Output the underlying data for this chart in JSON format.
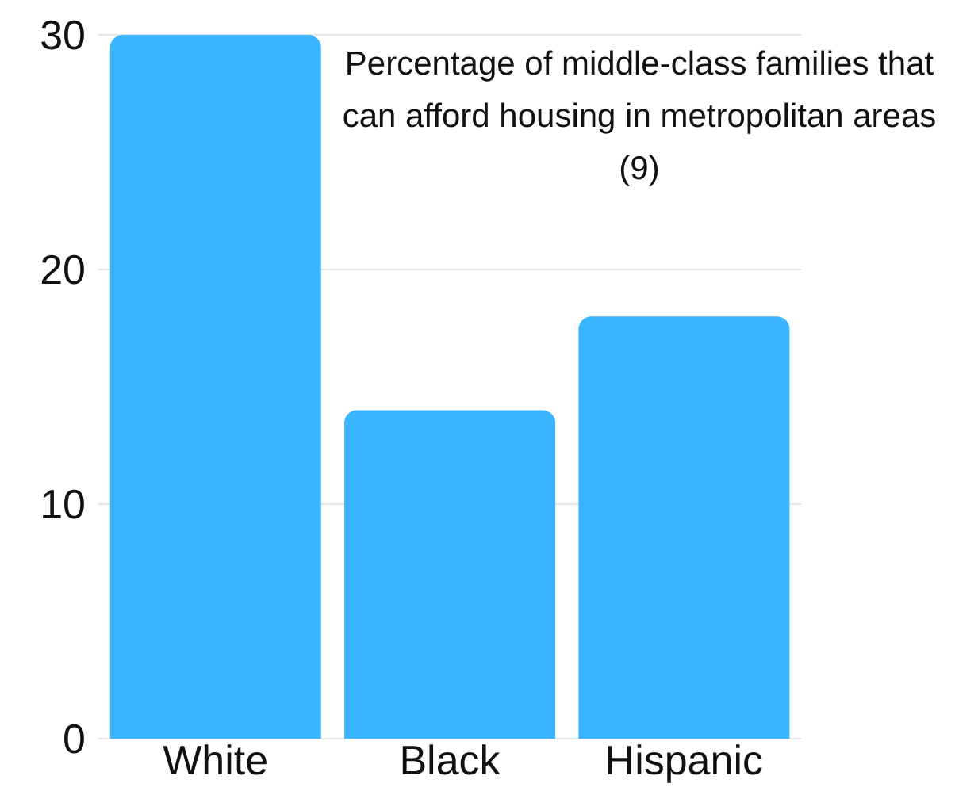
{
  "chart_data": {
    "type": "bar",
    "title": "Percentage of middle-class families that can afford housing in metropolitan areas (9)",
    "categories": [
      "White",
      "Black",
      "Hispanic"
    ],
    "values": [
      30,
      14,
      18
    ],
    "color": "#3bb4ff",
    "ylim": [
      0,
      30
    ],
    "yticks": [
      0,
      10,
      20,
      30
    ],
    "grid": "y"
  }
}
